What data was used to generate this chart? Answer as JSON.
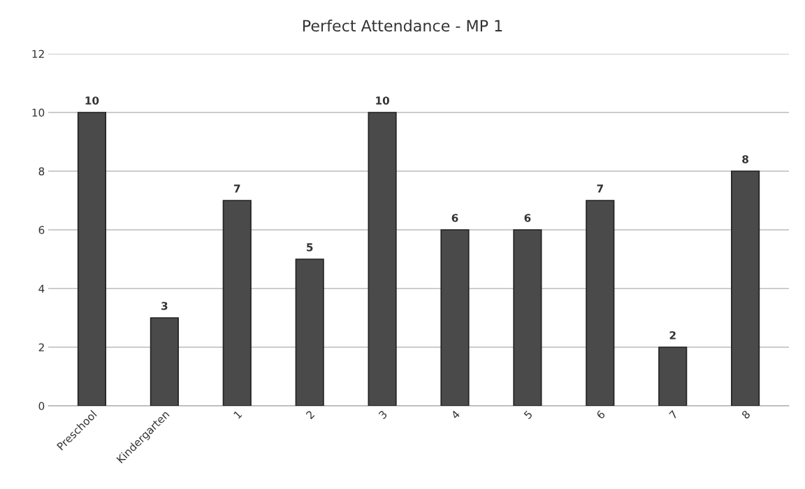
{
  "chart_data": {
    "type": "bar",
    "title": "Perfect Attendance - MP 1",
    "categories": [
      "Preschool",
      "Kindergarten",
      "1",
      "2",
      "3",
      "4",
      "5",
      "6",
      "7",
      "8"
    ],
    "values": [
      10,
      3,
      7,
      5,
      10,
      6,
      6,
      7,
      2,
      8
    ],
    "color": "#4a4a4a",
    "ylim": [
      0,
      12
    ],
    "yticks": [
      0,
      2,
      4,
      6,
      8,
      10,
      12
    ],
    "grid": "y",
    "data_labels": true,
    "legend": false
  }
}
